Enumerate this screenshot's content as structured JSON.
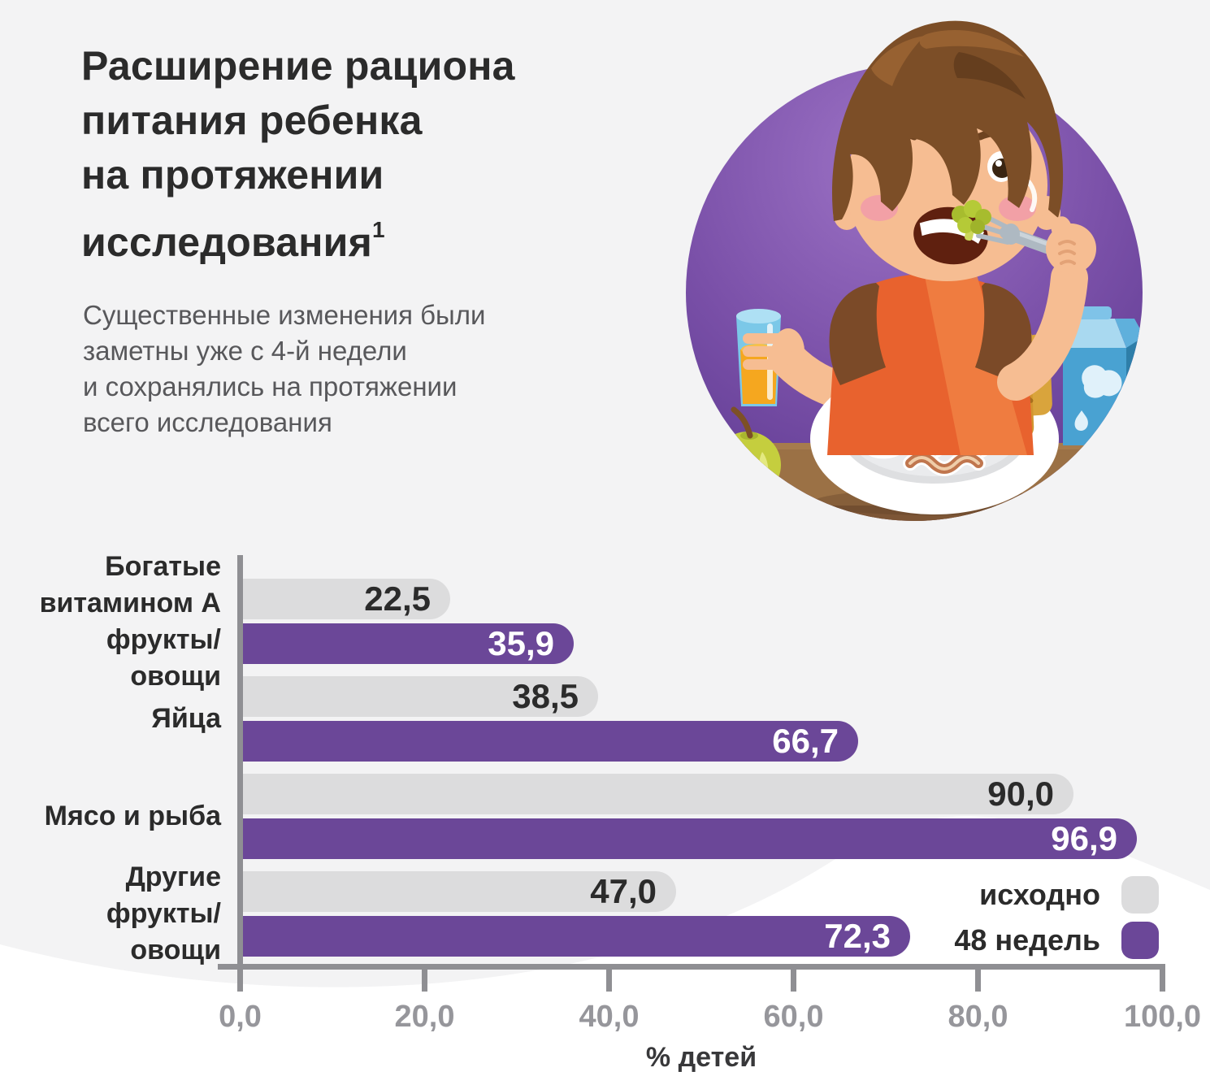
{
  "page": {
    "background": "#F3F3F4",
    "accent_purple": "#6B4798",
    "bar_gray": "#DCDCDD",
    "axis_gray": "#8F8F93",
    "wave_white": "#FFFFFF"
  },
  "header": {
    "title_lines": [
      "Расширение рациона",
      "питания ребенка",
      "на протяжении",
      "исследования"
    ],
    "footnote_marker": "1",
    "subtitle_lines": [
      "Существенные изменения были",
      "заметны уже с 4-й недели",
      "и сохранялись на протяжении",
      "всего исследования"
    ]
  },
  "illustration": {
    "name": "boy-eating-breakfast-illustration"
  },
  "chart_data": {
    "type": "bar",
    "orientation": "horizontal",
    "categories": [
      "Богатые витамином А фрукты/овощи",
      "Яйца",
      "Мясо и рыба",
      "Другие фрукты/овощи"
    ],
    "category_label_lines": [
      [
        "Богатые",
        "витамином А",
        "фрукты/овощи"
      ],
      [
        "Яйца"
      ],
      [
        "Мясо и рыба"
      ],
      [
        "Другие",
        "фрукты/овощи"
      ]
    ],
    "series": [
      {
        "name": "исходно",
        "color": "#DCDCDD",
        "values": [
          22.5,
          38.5,
          90.0,
          47.0
        ],
        "display": [
          "22,5",
          "38,5",
          "90,0",
          "47,0"
        ]
      },
      {
        "name": "48 недель",
        "color": "#6B4798",
        "values": [
          35.9,
          66.7,
          96.9,
          72.3
        ],
        "display": [
          "35,9",
          "66,7",
          "96,9",
          "72,3"
        ]
      }
    ],
    "xlabel": "% детей",
    "xlim": [
      0,
      100
    ],
    "x_ticks": [
      "0,0",
      "20,0",
      "40,0",
      "60,0",
      "80,0",
      "100,0"
    ],
    "x_tick_values": [
      0,
      20,
      40,
      60,
      80,
      100
    ],
    "legend_position": "bottom-right",
    "grid": false
  }
}
